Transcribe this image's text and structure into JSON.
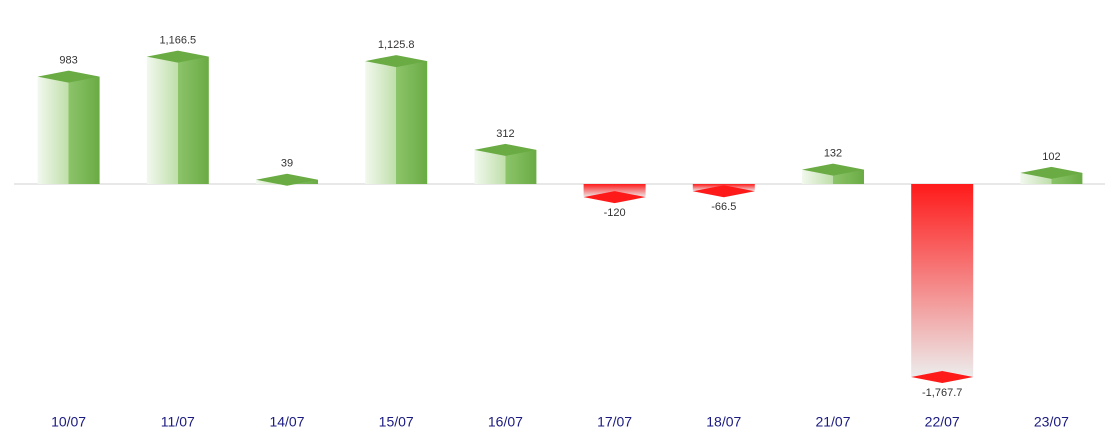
{
  "chart_data": {
    "type": "bar",
    "categories": [
      "10/07",
      "11/07",
      "14/07",
      "15/07",
      "16/07",
      "17/07",
      "18/07",
      "21/07",
      "22/07",
      "23/07"
    ],
    "values": [
      983,
      1166.5,
      39,
      1125.8,
      312,
      -120,
      -66.5,
      132,
      -1767.7,
      102
    ],
    "value_labels": [
      "983",
      "1,166.5",
      "39",
      "1,125.8",
      "312",
      "-120",
      "-66.5",
      "132",
      "-1,767.7",
      "102"
    ],
    "positive_color": "#6aab44",
    "negative_color": "#ff1a1a"
  }
}
